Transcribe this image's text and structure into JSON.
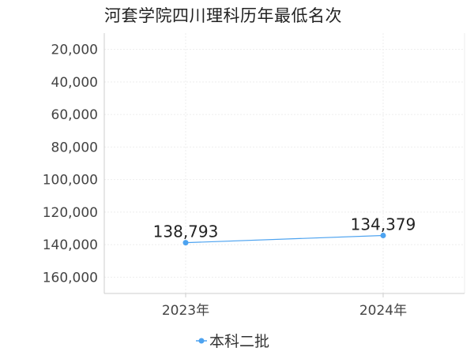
{
  "chart_data": {
    "type": "line",
    "title": "河套学院四川理科历年最低名次",
    "categories": [
      "2023年",
      "2024年"
    ],
    "series": [
      {
        "name": "本科二批",
        "values": [
          138793,
          134379
        ],
        "color": "#4da3f0"
      }
    ],
    "data_labels": [
      "138,793",
      "134,379"
    ],
    "y_axis": {
      "reversed": true,
      "range": [
        10000,
        170000
      ],
      "ticks": [
        20000,
        40000,
        60000,
        80000,
        100000,
        120000,
        140000,
        160000
      ],
      "tick_labels": [
        "20,000",
        "40,000",
        "60,000",
        "80,000",
        "100,000",
        "120,000",
        "140,000",
        "160,000"
      ]
    },
    "xlabel": "",
    "ylabel": "",
    "grid": true,
    "legend_position": "bottom-center",
    "colors": {
      "line": "#4da3f0",
      "grid": "#eeeeee",
      "axis": "#cccccc"
    }
  }
}
